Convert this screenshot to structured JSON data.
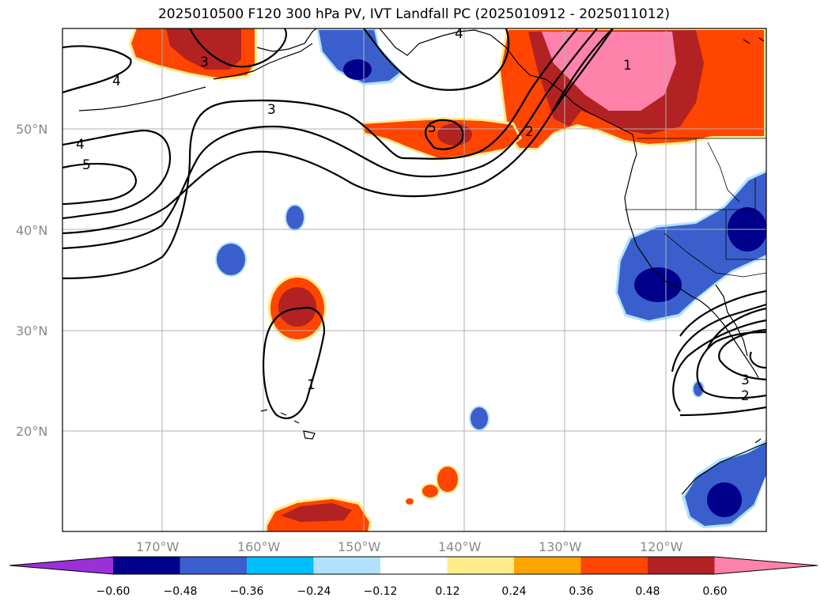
{
  "title": "2025010500 F120 300 hPa PV, IVT Landfall PC (2025010912 - 2025011012)",
  "lat_labels": [
    "50°N",
    "40°N",
    "30°N",
    "20°N"
  ],
  "lon_labels": [
    "170°W",
    "160°W",
    "150°W",
    "140°W",
    "130°W",
    "120°W"
  ],
  "contour_labels": [
    "4",
    "4",
    "5",
    "3",
    "3",
    "5",
    "2",
    "1",
    "4",
    "1",
    "3",
    "2"
  ],
  "colorbar": {
    "ticks": [
      "−0.60",
      "−0.48",
      "−0.36",
      "−0.24",
      "−0.12",
      "0.12",
      "0.24",
      "0.36",
      "0.48",
      "0.60"
    ],
    "colors": [
      "#9b30d9",
      "#00008b",
      "#3a5fcd",
      "#00bfff",
      "#b0e2ff",
      "#ffffff",
      "#ffec8b",
      "#ffa500",
      "#ff4500",
      "#b22222",
      "#ff82ab"
    ]
  },
  "colors": {
    "pink": "#ff82ab",
    "dark_red": "#b22222",
    "orange_red": "#ff4500",
    "orange": "#ffa500",
    "light_yellow": "#ffec8b",
    "navy": "#00008b",
    "royal_blue": "#3a5fcd",
    "deep_sky": "#00bfff",
    "light_blue": "#b0e2ff"
  }
}
